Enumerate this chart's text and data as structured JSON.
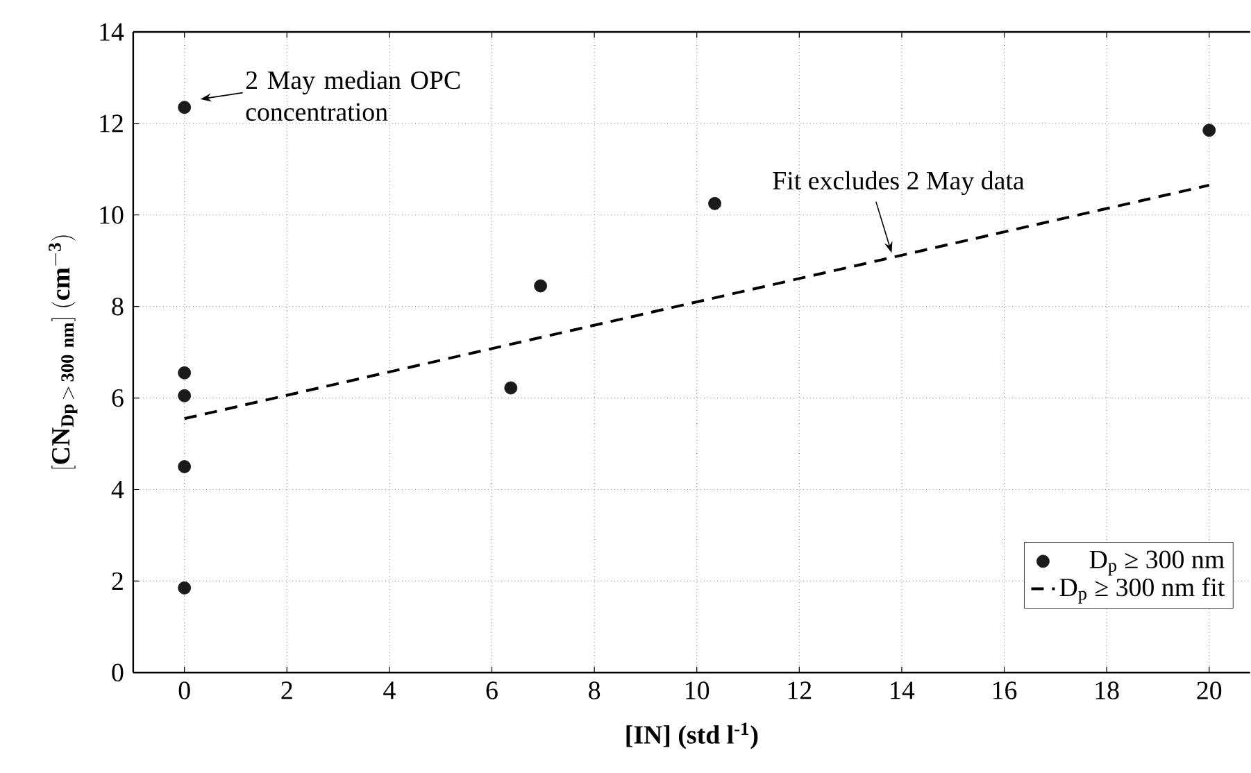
{
  "chart_data": {
    "type": "scatter",
    "xlabel": "**[IN] (std l$^{-1}$)**",
    "ylabel": "\\mathbf{[CN_{Dp\\,>\\,300\\ nm}]\\ (cm^{-3})}",
    "xlim": [
      -1,
      20.8
    ],
    "ylim": [
      0,
      14
    ],
    "xticks": [
      0,
      2,
      4,
      6,
      8,
      10,
      12,
      14,
      16,
      18,
      20
    ],
    "yticks": [
      0,
      2,
      4,
      6,
      8,
      10,
      12,
      14
    ],
    "grid": true,
    "legend": "bottom right",
    "series": [
      {
        "name": "D$_{p}$ ≥ 300 nm",
        "color": "#1a1a1a",
        "marker": "circle",
        "x": [
          0,
          0,
          0,
          0,
          0,
          6.37,
          6.95,
          10.35,
          20
        ],
        "values": [
          12.35,
          6.55,
          6.05,
          4.5,
          1.85,
          6.22,
          8.45,
          10.25,
          11.85
        ]
      },
      {
        "name": "D$_{p}$ ≥ 300 nm fit",
        "type": "line",
        "line_style": "dashed",
        "marker": "none",
        "color": "#000000",
        "x": [
          0,
          20
        ],
        "values": [
          5.55,
          10.65
        ]
      }
    ],
    "annotations": [
      "2 May median OPC concentration",
      "Fit excludes 2 May data"
    ]
  }
}
